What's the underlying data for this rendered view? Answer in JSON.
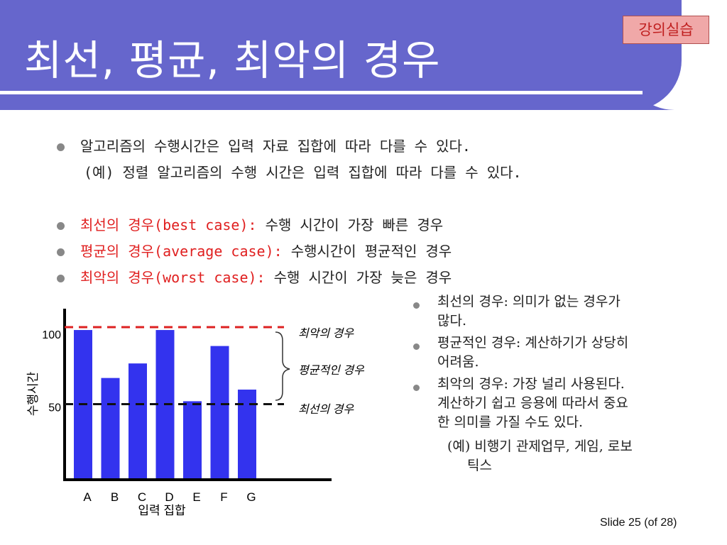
{
  "slide": {
    "title": "최선, 평균, 최악의 경우",
    "badge": "강의실습",
    "footer": "Slide  25 (of  28)",
    "header_color": "#6666cc"
  },
  "bullets": {
    "intro_line1": "알고리즘의 수행시간은 입력 자료 집합에 따라 다를 수 있다.",
    "intro_line2": "(예) 정렬 알고리즘의 수행 시간은 입력 집합에 따라 다를 수 있다.",
    "best_label": "최선의 경우(best case):",
    "best_desc": "수행 시간이 가장 빠른 경우",
    "avg_label": "평균의 경우(average case):",
    "avg_desc": "수행시간이 평균적인 경우",
    "worst_label": "최악의 경우(worst case):",
    "worst_desc": "수행 시간이 가장 늦은 경우"
  },
  "right_notes": {
    "n1_l1": "최선의 경우: 의미가 없는 경우가",
    "n1_l2": "많다.",
    "n2_l1": "평균적인 경우: 계산하기가 상당히",
    "n2_l2": "어려움.",
    "n3_l1": "최악의 경우: 가장 널리 사용된다.",
    "n3_l2": "계산하기 쉽고 응용에 따라서 중요",
    "n3_l3": "한 의미를 가질 수도 있다.",
    "n4_l1": "(예) 비행기 관제업무, 게임, 로보",
    "n4_l2": "틱스"
  },
  "chart_data": {
    "type": "bar",
    "categories": [
      "A",
      "B",
      "C",
      "D",
      "E",
      "F",
      "G"
    ],
    "values": [
      103,
      70,
      80,
      103,
      54,
      92,
      62
    ],
    "ytick_labels": [
      "100",
      "50"
    ],
    "yticks": [
      100,
      50
    ],
    "ylim": [
      0,
      125
    ],
    "xlabel": "입력 집합",
    "ylabel": "수행시간",
    "bar_color": "#3333ee",
    "worst_line": 105,
    "best_line": 52,
    "worst_label": "최악의 경우",
    "avg_label": "평균적인 경우",
    "best_label": "최선의 경우",
    "worst_color": "#dd2222",
    "best_color": "#111111"
  }
}
